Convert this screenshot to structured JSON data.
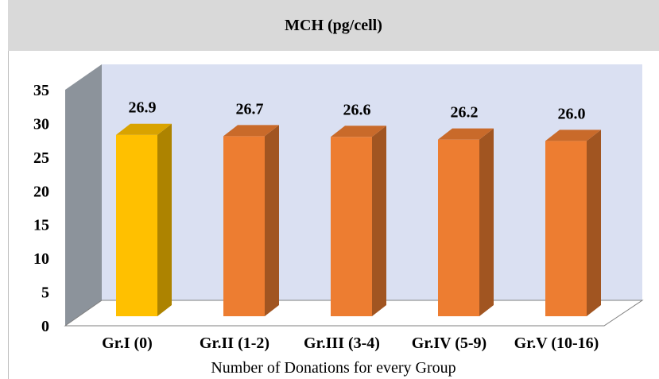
{
  "chart_data": {
    "type": "bar",
    "title": "MCH (pg/cell)",
    "xlabel": "Number of Donations for every Group",
    "ylabel": "",
    "ylim": [
      0,
      35
    ],
    "yticks": [
      "0",
      "5",
      "10",
      "15",
      "20",
      "25",
      "30",
      "35"
    ],
    "categories": [
      "Gr.I (0)",
      "Gr.II (1-2)",
      "Gr.III (3-4)",
      "Gr.IV (5-9)",
      "Gr.V (10-16)"
    ],
    "values": [
      26.9,
      26.7,
      26.6,
      26.2,
      26.0
    ],
    "data_labels": [
      "26.9",
      "26.7",
      "26.6",
      "26.2",
      "26.0"
    ],
    "bar_colors": [
      "#ffc000",
      "#ed7d31",
      "#ed7d31",
      "#ed7d31",
      "#ed7d31"
    ],
    "style": "3d-column",
    "grid": false,
    "legend": "none",
    "colors": {
      "title_background": "#d9d9d9",
      "back_wall": "#dae0f2",
      "side_wall": "#8c939b",
      "floor": "#ffffff"
    }
  }
}
